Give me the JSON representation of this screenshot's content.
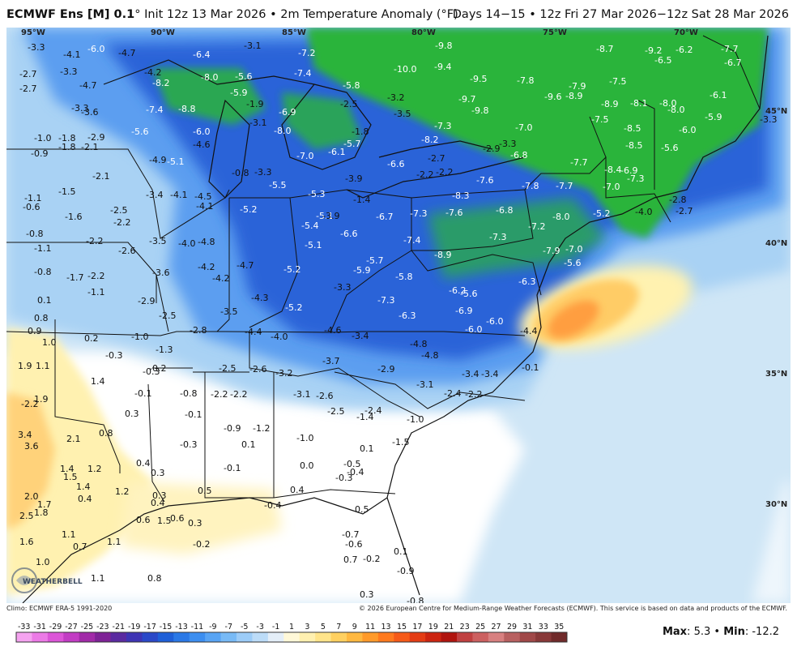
{
  "header": {
    "model": "ECMWF Ens [M] 0.1",
    "degree": "°",
    "init": " Init 12z 13 Mar 2026 • 2m Temperature Anomaly (°F)",
    "valid": "Days 14−15 • 12z Fri 27 Mar 2026−12z Sat 28 Mar 2026"
  },
  "coords": {
    "lon": [
      "95°W",
      "90°W",
      "85°W",
      "80°W",
      "75°W",
      "70°W"
    ],
    "lat": [
      "45°N",
      "40°N",
      "35°N",
      "30°N"
    ]
  },
  "footer": {
    "climo": "Climo: ECMWF ERA-5 1991-2020",
    "copyright": "© 2026 European Centre for Medium-Range Weather Forecasts (ECMWF). This service is based on data and products of the ECMWF.",
    "max_label": "Max",
    "max_value": "5.3",
    "min_label": "Min",
    "min_value": "-12.2"
  },
  "logo_text": "WEATHERBELL",
  "colorbar": {
    "ticks": [
      "-33",
      "-31",
      "-29",
      "-27",
      "-25",
      "-23",
      "-21",
      "-19",
      "-17",
      "-15",
      "-13",
      "-11",
      "-9",
      "-7",
      "-5",
      "-3",
      "-1",
      "1",
      "3",
      "5",
      "7",
      "9",
      "11",
      "13",
      "15",
      "17",
      "19",
      "21",
      "23",
      "25",
      "27",
      "29",
      "31",
      "33",
      "35"
    ],
    "colors": [
      "#f5a3f0",
      "#ec7ae6",
      "#dc55d8",
      "#c23cc4",
      "#a12aa8",
      "#7e2296",
      "#5a2aa0",
      "#3e34b4",
      "#2a48c8",
      "#1e5fd8",
      "#2a78e6",
      "#3c8ef0",
      "#58a4f4",
      "#78baf6",
      "#9cccf8",
      "#bcdcf8",
      "#e4eef8",
      "#fff8d8",
      "#fff0b0",
      "#ffe48a",
      "#ffd060",
      "#ffb840",
      "#ff9a2a",
      "#ff7a1e",
      "#f65a18",
      "#e43c14",
      "#cc2410",
      "#b0140e",
      "#c04040",
      "#cc6060",
      "#d88080",
      "#b86060",
      "#a04848",
      "#883838",
      "#702a2a"
    ]
  },
  "map_legend": {
    "colors": {
      "ocean_neutral": "#d6ecf8",
      "land_neutral": "#ffffff",
      "cool_light": "#a8d4f4",
      "cool_mid": "#5c9ef0",
      "cool_deep": "#2a62d8",
      "cold_green": "#2cb43c",
      "warm_light": "#fff4b8",
      "warm_mid": "#ffcc66",
      "warm_peak": "#ff9a3a"
    }
  },
  "values": [
    {
      "t": "-3.3"
    },
    {
      "t": "-6.0"
    },
    {
      "t": "-4.7"
    },
    {
      "t": "-3.1"
    },
    {
      "t": "-7.2"
    },
    {
      "t": "-9.8"
    },
    {
      "t": "-8.7"
    },
    {
      "t": "-9.2"
    },
    {
      "t": "-7.7"
    },
    {
      "t": "-2.7"
    },
    {
      "t": "-4.1"
    },
    {
      "t": "-3.3"
    },
    {
      "t": "-6.4"
    },
    {
      "t": "-10.0"
    },
    {
      "t": "-9.4"
    },
    {
      "t": "-6.5"
    },
    {
      "t": "-6.2"
    },
    {
      "t": "-6.7"
    },
    {
      "t": "-2.7"
    },
    {
      "t": "-4.7"
    },
    {
      "t": "-4.2"
    },
    {
      "t": "-8.2"
    },
    {
      "t": "-8.0"
    },
    {
      "t": "-5.6"
    },
    {
      "t": "-7.4"
    },
    {
      "t": "-5.8"
    },
    {
      "t": "-9.5"
    },
    {
      "t": "-7.8"
    },
    {
      "t": "-7.9"
    },
    {
      "t": "-7.5"
    },
    {
      "t": "-3.3"
    },
    {
      "t": "-3.6"
    },
    {
      "t": "-7.4"
    },
    {
      "t": "-8.8"
    },
    {
      "t": "-5.9"
    },
    {
      "t": "-1.9"
    },
    {
      "t": "-6.9"
    },
    {
      "t": "-2.5"
    },
    {
      "t": "-3.2"
    },
    {
      "t": "-9.7"
    },
    {
      "t": "-9.8"
    },
    {
      "t": "-9.6"
    },
    {
      "t": "-8.9"
    },
    {
      "t": "-8.9"
    },
    {
      "t": "-8.1"
    },
    {
      "t": "-8.0"
    },
    {
      "t": "-8.0"
    },
    {
      "t": "-6.1"
    },
    {
      "t": "-3.5"
    },
    {
      "t": "-7.3"
    },
    {
      "t": "-7.0"
    },
    {
      "t": "-7.5"
    },
    {
      "t": "-8.5"
    },
    {
      "t": "-5.9"
    },
    {
      "t": "-3.3"
    },
    {
      "t": "-1.0"
    },
    {
      "t": "-1.8"
    },
    {
      "t": "-2.9"
    },
    {
      "t": "-5.6"
    },
    {
      "t": "-6.0"
    },
    {
      "t": "-3.1"
    },
    {
      "t": "-8.0"
    },
    {
      "t": "-1.8"
    },
    {
      "t": "-8.2"
    },
    {
      "t": "-6.0"
    },
    {
      "t": "-1.8"
    },
    {
      "t": "-2.1"
    },
    {
      "t": "-4.6"
    },
    {
      "t": "-5.7"
    },
    {
      "t": "-2.9"
    },
    {
      "t": "-3.3"
    },
    {
      "t": "-8.5"
    },
    {
      "t": "-5.6"
    },
    {
      "t": "-0.9"
    },
    {
      "t": "-4.9"
    },
    {
      "t": "-5.1"
    },
    {
      "t": "-7.0"
    },
    {
      "t": "-6.1"
    },
    {
      "t": "-6.8"
    },
    {
      "t": "-7.7"
    },
    {
      "t": "-0.8"
    },
    {
      "t": "-3.3"
    },
    {
      "t": "-6.6"
    },
    {
      "t": "-2.7"
    },
    {
      "t": "-7.6"
    },
    {
      "t": "-8.4"
    },
    {
      "t": "-6.9"
    },
    {
      "t": "-2.1"
    },
    {
      "t": "-5.5"
    },
    {
      "t": "-3.9"
    },
    {
      "t": "-2.2"
    },
    {
      "t": "-2.2"
    },
    {
      "t": "-7.7"
    },
    {
      "t": "-7.3"
    },
    {
      "t": "-1.5"
    },
    {
      "t": "-3.4"
    },
    {
      "t": "-4.1"
    },
    {
      "t": "-4.5"
    },
    {
      "t": "-5.3"
    },
    {
      "t": "-1.4"
    },
    {
      "t": "-7.8"
    },
    {
      "t": "-7.0"
    },
    {
      "t": "-1.1"
    },
    {
      "t": "-4.1"
    },
    {
      "t": "-8.3"
    },
    {
      "t": "-2.8"
    },
    {
      "t": "-0.6"
    },
    {
      "t": "-2.5"
    },
    {
      "t": "-5.2"
    },
    {
      "t": "-5.1"
    },
    {
      "t": "-7.3"
    },
    {
      "t": "-7.6"
    },
    {
      "t": "-6.8"
    },
    {
      "t": "-5.2"
    },
    {
      "t": "-4.0"
    },
    {
      "t": "-2.7"
    },
    {
      "t": "-1.6"
    },
    {
      "t": "-2.2"
    },
    {
      "t": "-5.4"
    },
    {
      "t": "-6.7"
    },
    {
      "t": "-8.0"
    },
    {
      "t": "-3.9"
    },
    {
      "t": "-7.2"
    },
    {
      "t": "-0.8"
    },
    {
      "t": "-2.2"
    },
    {
      "t": "-3.5"
    },
    {
      "t": "-4.0"
    },
    {
      "t": "-4.8"
    },
    {
      "t": "-6.6"
    },
    {
      "t": "-7.4"
    },
    {
      "t": "-7.3"
    },
    {
      "t": "-1.1"
    },
    {
      "t": "-2.6"
    },
    {
      "t": "-5.1"
    },
    {
      "t": "-7.9"
    },
    {
      "t": "-7.0"
    },
    {
      "t": "-4.7"
    },
    {
      "t": "-5.7"
    },
    {
      "t": "-8.9"
    },
    {
      "t": "-5.6"
    },
    {
      "t": "-0.8"
    },
    {
      "t": "-3.6"
    },
    {
      "t": "-4.2"
    },
    {
      "t": "-5.2"
    },
    {
      "t": "-5.9"
    },
    {
      "t": "-1.7"
    },
    {
      "t": "-2.2"
    },
    {
      "t": "-4.2"
    },
    {
      "t": "-5.8"
    },
    {
      "t": "-6.3"
    },
    {
      "t": "-1.1"
    },
    {
      "t": "-5.6"
    },
    {
      "t": "-3.3"
    },
    {
      "t": "-6.2"
    },
    {
      "t": "0.1"
    },
    {
      "t": "-2.9"
    },
    {
      "t": "-4.3"
    },
    {
      "t": "-5.2"
    },
    {
      "t": "-7.3"
    },
    {
      "t": "-3.5"
    },
    {
      "t": "-6.9"
    },
    {
      "t": "0.8"
    },
    {
      "t": "-2.5"
    },
    {
      "t": "-6.3"
    },
    {
      "t": "-6.0"
    },
    {
      "t": "0.9"
    },
    {
      "t": "-2.8"
    },
    {
      "t": "-4.4"
    },
    {
      "t": "-4.0"
    },
    {
      "t": "-4.6"
    },
    {
      "t": "-6.0"
    },
    {
      "t": "-4.4"
    },
    {
      "t": "1.0"
    },
    {
      "t": "0.2"
    },
    {
      "t": "-1.0"
    },
    {
      "t": "-3.4"
    },
    {
      "t": "-1.3"
    },
    {
      "t": "-4.8"
    },
    {
      "t": "-0.3"
    },
    {
      "t": "-4.8"
    },
    {
      "t": "1.9"
    },
    {
      "t": "1.1"
    },
    {
      "t": "-0.2"
    },
    {
      "t": "-3.7"
    },
    {
      "t": "-0.1"
    },
    {
      "t": "-2.5"
    },
    {
      "t": "-2.6"
    },
    {
      "t": "-3.2"
    },
    {
      "t": "-2.9"
    },
    {
      "t": "-3.4"
    },
    {
      "t": "-3.4"
    },
    {
      "t": "1.4"
    },
    {
      "t": "-0.3"
    },
    {
      "t": "-3.1"
    },
    {
      "t": "-0.1"
    },
    {
      "t": "-0.8"
    },
    {
      "t": "-2.2"
    },
    {
      "t": "-2.2"
    },
    {
      "t": "-3.1"
    },
    {
      "t": "-2.6"
    },
    {
      "t": "-2.4"
    },
    {
      "t": "-2.2"
    },
    {
      "t": "-2.2"
    },
    {
      "t": "1.9"
    },
    {
      "t": "-2.4"
    },
    {
      "t": "0.3"
    },
    {
      "t": "-0.1"
    },
    {
      "t": "-2.5"
    },
    {
      "t": "-1.4"
    },
    {
      "t": "-1.0"
    },
    {
      "t": "-0.9"
    },
    {
      "t": "-1.2"
    },
    {
      "t": "-1.0"
    },
    {
      "t": "3.4"
    },
    {
      "t": "2.1"
    },
    {
      "t": "0.8"
    },
    {
      "t": "3.6"
    },
    {
      "t": "-0.3"
    },
    {
      "t": "0.1"
    },
    {
      "t": "-1.5"
    },
    {
      "t": "0.1"
    },
    {
      "t": "0.4"
    },
    {
      "t": "1.4"
    },
    {
      "t": "1.2"
    },
    {
      "t": "-0.1"
    },
    {
      "t": "0.0"
    },
    {
      "t": "-0.5"
    },
    {
      "t": "1.5"
    },
    {
      "t": "-0.4"
    },
    {
      "t": "0.3"
    },
    {
      "t": "-0.3"
    },
    {
      "t": "1.4"
    },
    {
      "t": "1.2"
    },
    {
      "t": "0.5"
    },
    {
      "t": "0.4"
    },
    {
      "t": "2.0"
    },
    {
      "t": "0.4"
    },
    {
      "t": "0.3"
    },
    {
      "t": "1.7"
    },
    {
      "t": "0.4"
    },
    {
      "t": "0.6"
    },
    {
      "t": "-0.4"
    },
    {
      "t": "0.5"
    },
    {
      "t": "2.5"
    },
    {
      "t": "1.8"
    },
    {
      "t": "0.6"
    },
    {
      "t": "1.5"
    },
    {
      "t": "0.3"
    },
    {
      "t": "1.6"
    },
    {
      "t": "1.1"
    },
    {
      "t": "0.7"
    },
    {
      "t": "1.1"
    },
    {
      "t": "-0.2"
    },
    {
      "t": "-0.7"
    },
    {
      "t": "-0.6"
    },
    {
      "t": "0.7"
    },
    {
      "t": "-0.2"
    },
    {
      "t": "0.1"
    },
    {
      "t": "1.0"
    },
    {
      "t": "-0.9"
    },
    {
      "t": "1.1"
    },
    {
      "t": "0.8"
    },
    {
      "t": "0.3"
    },
    {
      "t": "-0.8"
    }
  ]
}
